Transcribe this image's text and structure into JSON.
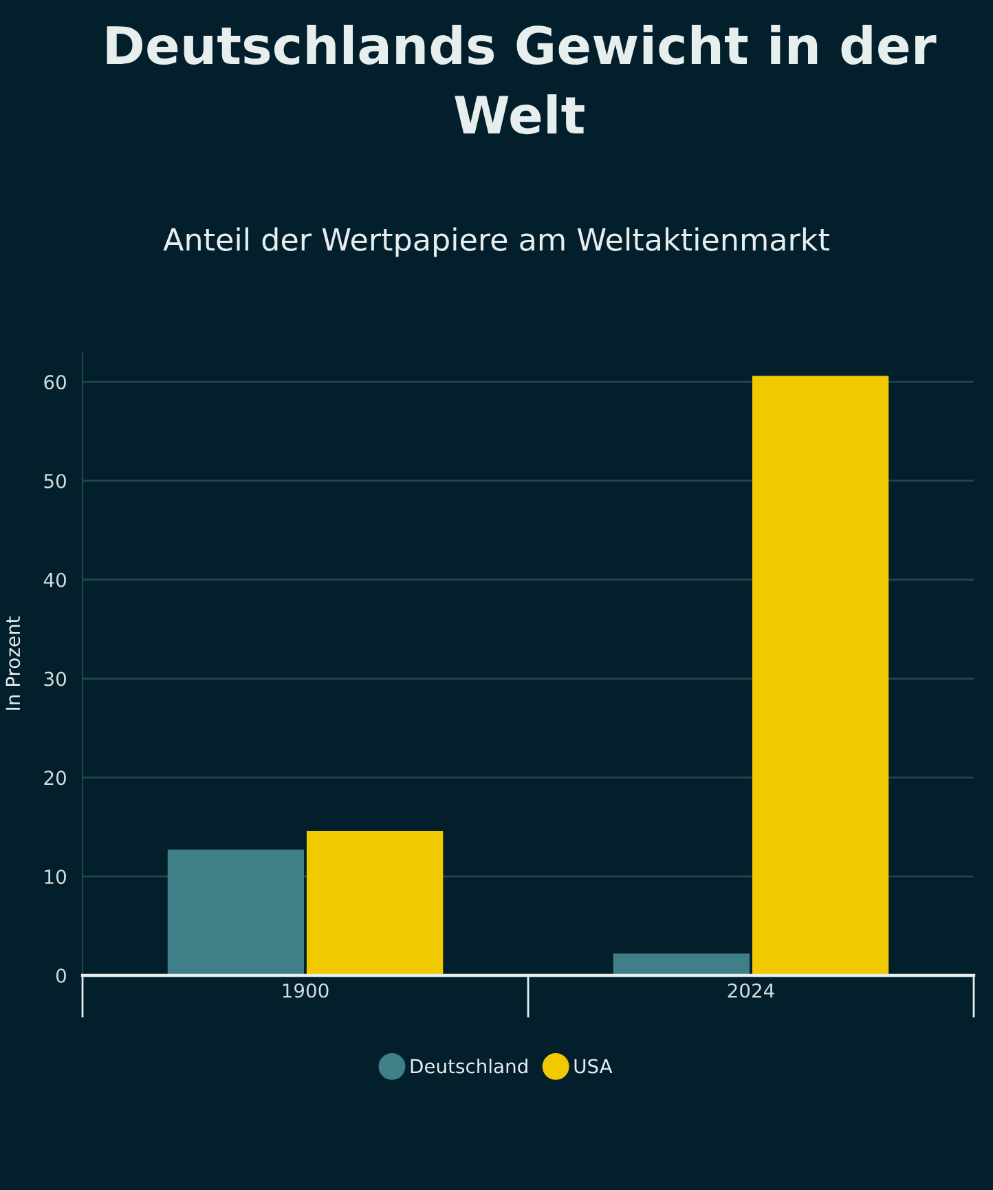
{
  "chart_data": {
    "type": "bar",
    "title": "Deutschlands Gewicht in der Welt",
    "subtitle": "Anteil der Wertpapiere am Weltaktienmarkt",
    "ylabel": "In Prozent",
    "categories": [
      "1900",
      "2024"
    ],
    "series": [
      {
        "name": "Deutschland",
        "color": "#3f8088",
        "values": [
          12.7,
          2.2
        ]
      },
      {
        "name": "USA",
        "color": "#f0c900",
        "values": [
          14.6,
          60.6
        ]
      }
    ],
    "ylim": [
      0,
      63
    ],
    "yticks": [
      0,
      10,
      20,
      30,
      40,
      50,
      60
    ],
    "grid": "y",
    "legend": "bottom"
  }
}
